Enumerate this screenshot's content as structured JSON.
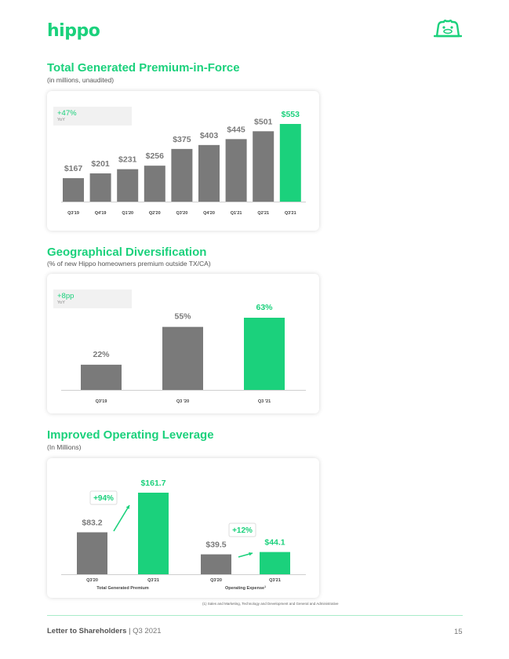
{
  "header": {
    "logo_text": "hippo",
    "mascot_icon": "hippo-face-icon",
    "brand_color": "#1bd17c",
    "bar_gray": "#7a7a7a"
  },
  "sections": [
    {
      "title": "Total Generated Premium-in-Force",
      "subtitle": "(in millions, unaudited)",
      "badge_value": "+47%",
      "badge_label": "YoY"
    },
    {
      "title": "Geographical Diversification",
      "subtitle": "(% of new Hippo homeowners premium outside TX/CA)",
      "badge_value": "+8pp",
      "badge_label": "YoY"
    },
    {
      "title": "Improved Operating Leverage",
      "subtitle": "(In Millions)"
    }
  ],
  "chart_data": [
    {
      "type": "bar",
      "categories": [
        "Q3'19",
        "Q4'19",
        "Q1'20",
        "Q2'20",
        "Q3'20",
        "Q4'20",
        "Q1'21",
        "Q2'21",
        "Q3'21"
      ],
      "values": [
        167,
        201,
        231,
        256,
        375,
        403,
        445,
        501,
        553
      ],
      "labels": [
        "$167",
        "$201",
        "$231",
        "$256",
        "$375",
        "$403",
        "$445",
        "$501",
        "$553"
      ],
      "highlight_index": 8,
      "ylim": [
        0,
        553
      ]
    },
    {
      "type": "bar",
      "categories": [
        "Q3'19",
        "Q3 '20",
        "Q3 '21"
      ],
      "values": [
        22,
        55,
        63
      ],
      "labels": [
        "22%",
        "55%",
        "63%"
      ],
      "highlight_index": 2,
      "ylim": [
        0,
        63
      ]
    },
    {
      "type": "bar",
      "groups": [
        {
          "name": "Total Generated Premium",
          "categories": [
            "Q3'20",
            "Q3'21"
          ],
          "values": [
            83.2,
            161.7
          ],
          "labels": [
            "$83.2",
            "$161.7"
          ],
          "change": "+94%"
        },
        {
          "name": "Operating Expense",
          "name_sup": "1",
          "categories": [
            "Q3'20",
            "Q3'21"
          ],
          "values": [
            39.5,
            44.1
          ],
          "labels": [
            "$39.5",
            "$44.1"
          ],
          "change": "+12%"
        }
      ],
      "ylim": [
        0,
        161.7
      ]
    }
  ],
  "footnote": "(1) Sales and Marketing, Technology and Development and General and Administrative",
  "footer": {
    "doc_title": "Letter to Shareholders",
    "separator": "|",
    "quarter": "Q3 2021",
    "page": "15"
  }
}
